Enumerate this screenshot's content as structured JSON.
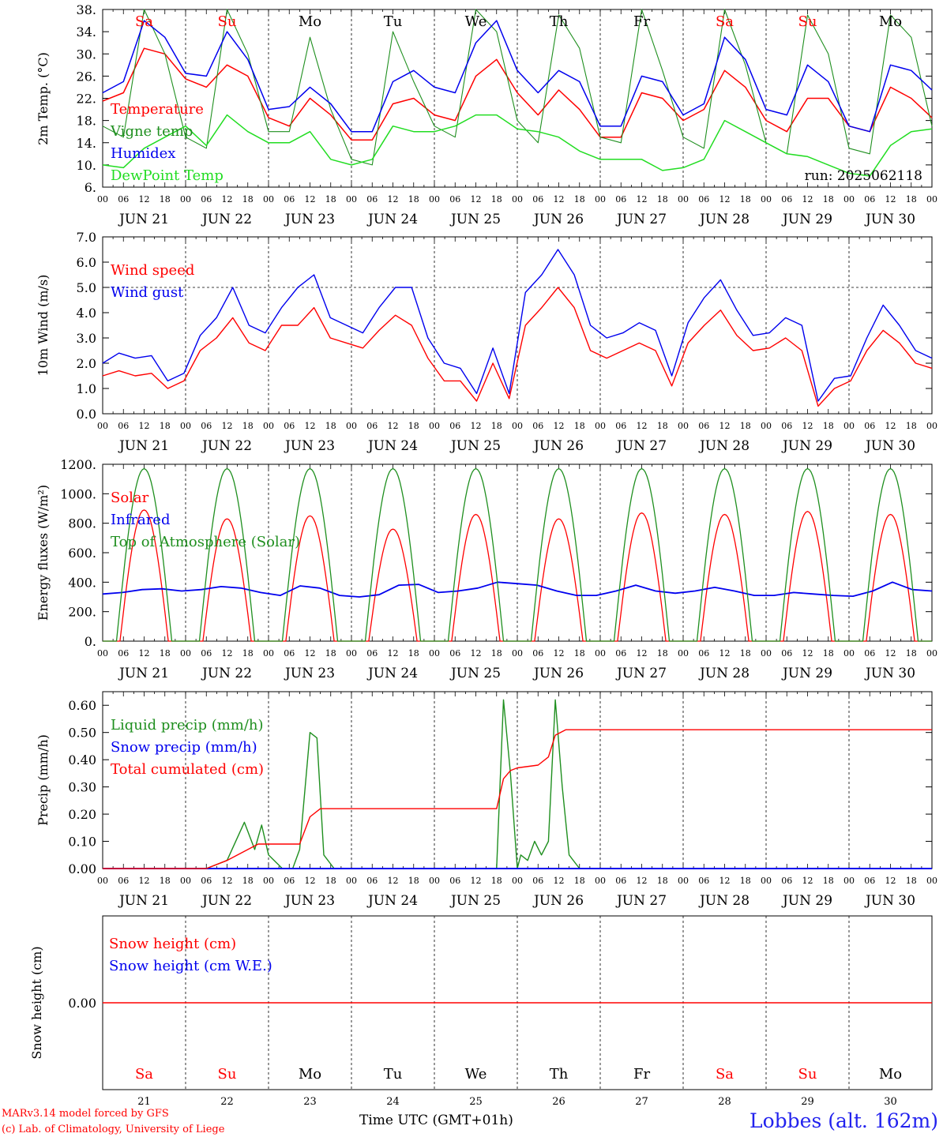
{
  "colors": {
    "red": "#ff0000",
    "green": "#1f8f1f",
    "blue": "#0000ee",
    "lime": "#22dd22",
    "axis": "#000000"
  },
  "footer": {
    "model": "MARv3.14 model forced by GFS",
    "copyright": "(c) Lab. of Climatology, University of Liege",
    "xlabel": "Time UTC (GMT+01h)",
    "station": "Lobbes (alt. 162m)"
  },
  "time_axis": {
    "hour_ticks": [
      "00",
      "06",
      "12",
      "18"
    ],
    "day_labels": [
      "JUN 21",
      "JUN 22",
      "JUN 23",
      "JUN 24",
      "JUN 25",
      "JUN 26",
      "JUN 27",
      "JUN 28",
      "JUN 29",
      "JUN 30"
    ],
    "weekdays": [
      "Sa",
      "Su",
      "Mo",
      "Tu",
      "We",
      "Th",
      "Fr",
      "Sa",
      "Su",
      "Mo"
    ],
    "weekday_colors": [
      "red",
      "red",
      "black",
      "black",
      "black",
      "black",
      "black",
      "red",
      "red",
      "black"
    ],
    "day_numbers": [
      "21",
      "22",
      "23",
      "24",
      "25",
      "26",
      "27",
      "28",
      "29",
      "30"
    ]
  },
  "chart_data": [
    {
      "type": "line",
      "ylabel": "2m Temp. (°C)",
      "ylim": [
        6,
        38
      ],
      "yticks": [
        6,
        10,
        14,
        18,
        22,
        26,
        30,
        34,
        38
      ],
      "ytick_labels": [
        "6.",
        "10.",
        "14.",
        "18.",
        "22.",
        "26.",
        "30.",
        "34.",
        "38."
      ],
      "annotation": "run: 2025062118",
      "x": "hours since Jun 21 00 UTC, step 6h",
      "series": [
        {
          "name": "Temperature",
          "color": "red",
          "values": [
            21.5,
            23,
            31,
            30,
            25.5,
            24,
            28,
            26,
            18.5,
            17,
            22,
            19,
            14.5,
            14.5,
            21,
            22,
            19,
            18,
            26,
            29,
            23,
            19,
            23.5,
            20,
            15,
            15,
            23,
            22,
            18,
            20,
            27,
            24,
            18,
            16,
            22,
            22,
            17,
            16,
            24,
            22,
            18.5
          ]
        },
        {
          "name": "Vigne temp",
          "color": "green",
          "values": [
            17,
            15,
            38,
            30,
            15,
            13,
            38,
            30,
            16,
            16,
            33,
            20,
            11,
            10,
            34,
            25,
            17,
            15,
            38,
            34,
            18,
            14,
            37,
            31,
            15,
            14,
            38,
            27,
            15,
            13,
            38,
            28,
            14,
            12,
            37,
            30,
            13,
            12,
            37,
            33,
            17
          ]
        },
        {
          "name": "Humidex",
          "color": "blue",
          "values": [
            23,
            25,
            36,
            33,
            26.5,
            26,
            34,
            29,
            20,
            20.5,
            24,
            21,
            16,
            16,
            25,
            27,
            24,
            23,
            32,
            36,
            27,
            23,
            27,
            25,
            17,
            17,
            26,
            25,
            19,
            21,
            33,
            29,
            20,
            19,
            28,
            25,
            17,
            16,
            28,
            27,
            23.5
          ]
        },
        {
          "name": "DewPoint Temp",
          "color": "lime",
          "values": [
            10,
            9.5,
            13,
            15,
            17,
            13.5,
            19,
            16,
            14,
            14,
            16,
            11,
            10,
            11,
            17,
            16,
            16,
            17,
            19,
            19,
            16.5,
            16,
            15,
            12.5,
            11,
            11,
            11,
            9,
            9.5,
            11,
            18,
            16,
            14,
            12,
            11.5,
            10,
            8.5,
            8,
            13.5,
            16,
            16.5
          ]
        }
      ]
    },
    {
      "type": "line",
      "ylabel": "10m Wind (m/s)",
      "ylim": [
        0,
        7
      ],
      "yticks": [
        0,
        1,
        2,
        3,
        4,
        5,
        6,
        7
      ],
      "ytick_labels": [
        "0.0",
        "1.0",
        "2.0",
        "3.0",
        "4.0",
        "5.0",
        "6.0",
        "7.0"
      ],
      "reference_line": 5,
      "series": [
        {
          "name": "Wind speed",
          "color": "red",
          "values": [
            1.5,
            1.7,
            1.5,
            1.6,
            1.0,
            1.3,
            2.5,
            3.0,
            3.8,
            2.8,
            2.5,
            3.5,
            3.5,
            4.2,
            3.0,
            2.8,
            2.6,
            3.3,
            3.9,
            3.5,
            2.2,
            1.3,
            1.3,
            0.5,
            2.0,
            0.6,
            3.5,
            4.2,
            5.0,
            4.2,
            2.5,
            2.2,
            2.5,
            2.8,
            2.5,
            1.1,
            2.8,
            3.5,
            4.1,
            3.1,
            2.5,
            2.6,
            3.0,
            2.5,
            0.3,
            1.0,
            1.3,
            2.5,
            3.3,
            2.8,
            2.0,
            1.8
          ]
        },
        {
          "name": "Wind gust",
          "color": "blue",
          "values": [
            2.0,
            2.4,
            2.2,
            2.3,
            1.3,
            1.6,
            3.1,
            3.8,
            5.0,
            3.5,
            3.2,
            4.2,
            5.0,
            5.5,
            3.8,
            3.5,
            3.2,
            4.2,
            5.0,
            5.0,
            3.0,
            2.0,
            1.8,
            0.8,
            2.6,
            0.8,
            4.8,
            5.5,
            6.5,
            5.5,
            3.5,
            3.0,
            3.2,
            3.6,
            3.3,
            1.5,
            3.6,
            4.6,
            5.3,
            4.1,
            3.1,
            3.2,
            3.8,
            3.5,
            0.5,
            1.4,
            1.5,
            3.0,
            4.3,
            3.5,
            2.5,
            2.2
          ]
        }
      ]
    },
    {
      "type": "line",
      "ylabel": "Energy fluxes (W/m²)",
      "ylim": [
        0,
        1200
      ],
      "yticks": [
        0,
        200,
        400,
        600,
        800,
        1000,
        1200
      ],
      "ytick_labels": [
        "0.",
        "200.",
        "400.",
        "600.",
        "800.",
        "1000.",
        "1200."
      ],
      "series": [
        {
          "name": "Solar",
          "color": "red",
          "daily_peak": [
            890,
            830,
            850,
            760,
            860,
            830,
            870,
            860,
            880,
            860
          ]
        },
        {
          "name": "Infrared",
          "color": "blue",
          "values": [
            320,
            330,
            350,
            355,
            340,
            350,
            370,
            360,
            330,
            310,
            375,
            360,
            310,
            300,
            315,
            380,
            385,
            330,
            340,
            360,
            400,
            390,
            380,
            340,
            310,
            310,
            340,
            380,
            340,
            325,
            340,
            365,
            340,
            310,
            310,
            330,
            320,
            310,
            305,
            340,
            400,
            350,
            340
          ]
        },
        {
          "name": "Top of Atmosphere (Solar)",
          "color": "green",
          "daily_peak": [
            1170,
            1170,
            1170,
            1170,
            1170,
            1170,
            1170,
            1170,
            1170,
            1170
          ]
        }
      ]
    },
    {
      "type": "line",
      "ylabel": "Precip (mm/h)",
      "ylim": [
        0,
        0.65
      ],
      "yticks": [
        0,
        0.1,
        0.2,
        0.3,
        0.4,
        0.5,
        0.6
      ],
      "ytick_labels": [
        "0.00",
        "0.10",
        "0.20",
        "0.30",
        "0.40",
        "0.50",
        "0.60"
      ],
      "series": [
        {
          "name": "Liquid precip (mm/h)",
          "color": "green",
          "points": [
            [
              0,
              0
            ],
            [
              30,
              0
            ],
            [
              36,
              0.03
            ],
            [
              41,
              0.17
            ],
            [
              44,
              0.07
            ],
            [
              46,
              0.16
            ],
            [
              48,
              0.05
            ],
            [
              52,
              0
            ],
            [
              55,
              0
            ],
            [
              57,
              0.07
            ],
            [
              60,
              0.5
            ],
            [
              62,
              0.48
            ],
            [
              64,
              0.05
            ],
            [
              67,
              0
            ],
            [
              114,
              0
            ],
            [
              116,
              0.62
            ],
            [
              118,
              0.35
            ],
            [
              120,
              0
            ],
            [
              121,
              0.05
            ],
            [
              123,
              0.03
            ],
            [
              125,
              0.1
            ],
            [
              127,
              0.05
            ],
            [
              129,
              0.1
            ],
            [
              131,
              0.62
            ],
            [
              133,
              0.3
            ],
            [
              135,
              0.05
            ],
            [
              138,
              0
            ],
            [
              240,
              0
            ]
          ]
        },
        {
          "name": "Snow precip (mm/h)",
          "color": "blue",
          "points": [
            [
              0,
              0
            ],
            [
              240,
              0
            ]
          ]
        },
        {
          "name": "Total cumulated (cm)",
          "color": "red",
          "points": [
            [
              0,
              0
            ],
            [
              30,
              0
            ],
            [
              36,
              0.03
            ],
            [
              42,
              0.07
            ],
            [
              45,
              0.09
            ],
            [
              54,
              0.09
            ],
            [
              57,
              0.09
            ],
            [
              60,
              0.19
            ],
            [
              63,
              0.22
            ],
            [
              114,
              0.22
            ],
            [
              116,
              0.33
            ],
            [
              118,
              0.36
            ],
            [
              120,
              0.37
            ],
            [
              126,
              0.38
            ],
            [
              129,
              0.41
            ],
            [
              131,
              0.49
            ],
            [
              134,
              0.51
            ],
            [
              240,
              0.51
            ]
          ]
        }
      ]
    },
    {
      "type": "line",
      "ylabel": "Snow height (cm)",
      "ytick_labels": [
        "0.00"
      ],
      "series": [
        {
          "name": "Snow height (cm)",
          "color": "red",
          "values": [
            0,
            0
          ]
        },
        {
          "name": "Snow height (cm W.E.)",
          "color": "blue",
          "values": [
            0,
            0
          ]
        }
      ]
    }
  ]
}
